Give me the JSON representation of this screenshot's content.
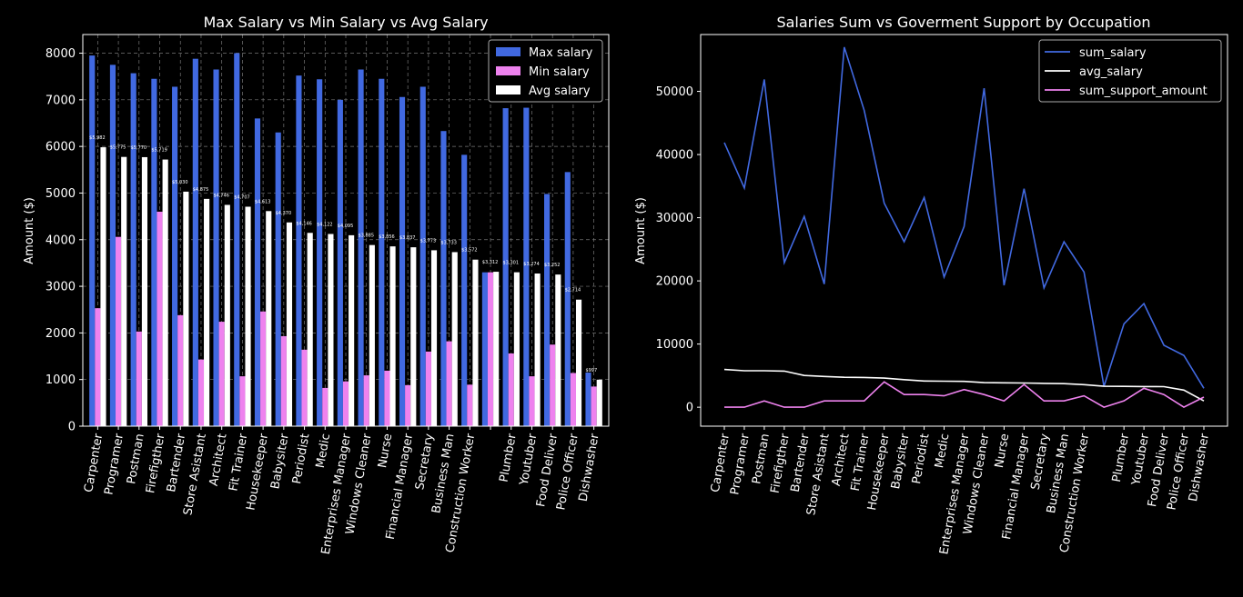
{
  "colors": {
    "background": "#000000",
    "max_salary": "#4169e1",
    "min_salary": "#ee82ee",
    "avg_salary": "#ffffff",
    "sum_salary": "#4169e1",
    "avg_salary_line": "#ffffff",
    "sum_support_amount": "#ee82ee"
  },
  "chart_data": [
    {
      "type": "bar",
      "title": "Max Salary vs Min Salary vs Avg Salary",
      "xlabel": "",
      "ylabel": "Amount ($)",
      "ylim": [
        0,
        8400
      ],
      "yticks": [
        0,
        1000,
        2000,
        3000,
        4000,
        5000,
        6000,
        7000,
        8000
      ],
      "grid": true,
      "legend": "top-right",
      "categories": [
        "Carpenter",
        "Programer",
        "Postman",
        "Firefigther",
        "Bartender",
        "Store Asistant",
        "Architect",
        "Fit Trainer",
        "Housekeeper",
        "Babysiter",
        "Periodist",
        "Medic",
        "Enterprises Manager",
        "Windows Cleaner",
        "Nurse",
        "Financial Manager",
        "Secretary",
        "Business Man",
        "Construction Worker",
        "",
        "Plumber",
        "Youtuber",
        "Food Deliver",
        "Police Officer",
        "Dishwasher"
      ],
      "series": [
        {
          "name": "Max salary",
          "values": [
            7950,
            7750,
            7570,
            7450,
            7280,
            7880,
            7650,
            8000,
            6600,
            6300,
            7520,
            7440,
            7000,
            7650,
            7450,
            7060,
            7280,
            6330,
            5820,
            3300,
            6820,
            6830,
            4980,
            5450,
            1150
          ]
        },
        {
          "name": "Min salary",
          "values": [
            2530,
            4060,
            2030,
            4600,
            2380,
            1430,
            2240,
            1070,
            2460,
            1930,
            1640,
            820,
            960,
            1090,
            1190,
            880,
            1600,
            1820,
            890,
            3300,
            1560,
            1070,
            1750,
            1140,
            850
          ]
        },
        {
          "name": "Avg salary",
          "values": [
            5982,
            5775,
            5770,
            5719,
            5030,
            4875,
            4746,
            4707,
            4613,
            4370,
            4146,
            4122,
            4095,
            3885,
            3856,
            3837,
            3773,
            3733,
            3572,
            3312,
            3301,
            3274,
            3252,
            2714,
            997
          ]
        }
      ],
      "data_labels": [
        "$5,982",
        "$5,775",
        "$5,770",
        "$5,719",
        "$5,030",
        "$4,875",
        "$4,746",
        "$4,707",
        "$4,613",
        "$4,370",
        "$4,146",
        "$4,122",
        "$4,095",
        "$3,885",
        "$3,856",
        "$3,837",
        "$3,773",
        "$3,733",
        "$3,572",
        "$3,312",
        "$3,301",
        "$3,274",
        "$3,252",
        "$2,714",
        "$997"
      ]
    },
    {
      "type": "line",
      "title": "Salaries Sum vs Goverment Support by Occupation",
      "xlabel": "",
      "ylabel": "Amount ($)",
      "ylim": [
        -3000,
        59000
      ],
      "yticks": [
        0,
        10000,
        20000,
        30000,
        40000,
        50000
      ],
      "grid": false,
      "legend": "top-right",
      "categories": [
        "Carpenter",
        "Programer",
        "Postman",
        "Firefigther",
        "Bartender",
        "Store Asistant",
        "Architect",
        "Fit Trainer",
        "Housekeeper",
        "Babysiter",
        "Periodist",
        "Medic",
        "Enterprises Manager",
        "Windows Cleaner",
        "Nurse",
        "Financial Manager",
        "Secretary",
        "Business Man",
        "Construction Worker",
        "",
        "Plumber",
        "Youtuber",
        "Food Deliver",
        "Police Officer",
        "Dishwasher"
      ],
      "series": [
        {
          "name": "sum_salary",
          "values": [
            41900,
            34700,
            51900,
            22900,
            30200,
            19500,
            57000,
            47000,
            32300,
            26200,
            33200,
            20600,
            28600,
            50500,
            19300,
            34600,
            18900,
            26200,
            21400,
            3300,
            13200,
            16400,
            9800,
            8200,
            3000
          ]
        },
        {
          "name": "avg_salary",
          "values": [
            5982,
            5775,
            5770,
            5719,
            5030,
            4875,
            4746,
            4707,
            4613,
            4370,
            4146,
            4122,
            4095,
            3885,
            3856,
            3837,
            3773,
            3733,
            3572,
            3312,
            3301,
            3274,
            3252,
            2714,
            997
          ]
        },
        {
          "name": "sum_support_amount",
          "values": [
            0,
            0,
            1000,
            0,
            0,
            1000,
            1000,
            1000,
            4000,
            2000,
            2000,
            1800,
            2800,
            2000,
            1000,
            3600,
            1000,
            1000,
            1800,
            0,
            1000,
            3000,
            2000,
            0,
            1600
          ]
        }
      ]
    }
  ]
}
